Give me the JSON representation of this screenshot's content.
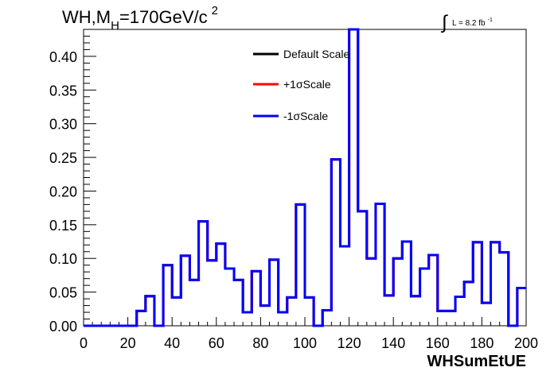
{
  "chart_data": {
    "type": "line",
    "subtype": "step-histogram",
    "title": "WH,M",
    "title_sub": "H",
    "title_tail": "=170GeV/c",
    "title_sup": "2",
    "lumi_label": "L = 8.2 fb",
    "lumi_sup": "-1",
    "xlabel": "WHSumEtUE",
    "ylabel": "",
    "xlim": [
      0,
      200
    ],
    "ylim": [
      0,
      0.44
    ],
    "x_ticks": [
      "0",
      "20",
      "40",
      "60",
      "80",
      "100",
      "120",
      "140",
      "160",
      "180",
      "200"
    ],
    "y_ticks": [
      "0.00",
      "0.05",
      "0.10",
      "0.15",
      "0.20",
      "0.25",
      "0.30",
      "0.35",
      "0.40"
    ],
    "legend_position": "top-center",
    "bin_edges": [
      0,
      4,
      8,
      12,
      16,
      20,
      24,
      28,
      32,
      36,
      40,
      44,
      48,
      52,
      56,
      60,
      64,
      68,
      72,
      76,
      80,
      84,
      88,
      92,
      96,
      100,
      104,
      108,
      112,
      116,
      120,
      124,
      128,
      132,
      136,
      140,
      144,
      148,
      152,
      156,
      160,
      164,
      168,
      172,
      176,
      180,
      184,
      188,
      192,
      196,
      200
    ],
    "series": [
      {
        "name": "Default Scale",
        "color": "#000000",
        "values": [
          0,
          0,
          0,
          0,
          0,
          0,
          0.022,
          0.044,
          0.0,
          0.09,
          0.042,
          0.104,
          0.068,
          0.155,
          0.097,
          0.122,
          0.085,
          0.068,
          0.02,
          0.081,
          0.03,
          0.098,
          0.02,
          0.042,
          0.18,
          0.042,
          0.0,
          0.023,
          0.247,
          0.118,
          0.44,
          0.17,
          0.1,
          0.181,
          0.045,
          0.1,
          0.125,
          0.044,
          0.085,
          0.105,
          0.022,
          0.022,
          0.043,
          0.065,
          0.124,
          0.034,
          0.124,
          0.109,
          0.0,
          0.056
        ]
      },
      {
        "name": "+1σScale",
        "color": "#ff0000",
        "values": [
          0,
          0,
          0,
          0,
          0,
          0,
          0.022,
          0.044,
          0.0,
          0.09,
          0.042,
          0.104,
          0.068,
          0.155,
          0.097,
          0.122,
          0.085,
          0.068,
          0.02,
          0.081,
          0.03,
          0.098,
          0.02,
          0.042,
          0.18,
          0.042,
          0.0,
          0.023,
          0.247,
          0.118,
          0.44,
          0.17,
          0.1,
          0.181,
          0.045,
          0.1,
          0.125,
          0.044,
          0.085,
          0.105,
          0.022,
          0.022,
          0.043,
          0.065,
          0.124,
          0.034,
          0.124,
          0.109,
          0.0,
          0.056
        ]
      },
      {
        "name": "-1σScale",
        "color": "#0000ff",
        "values": [
          0,
          0,
          0,
          0,
          0,
          0,
          0.022,
          0.044,
          0.0,
          0.09,
          0.042,
          0.104,
          0.068,
          0.155,
          0.097,
          0.122,
          0.085,
          0.068,
          0.02,
          0.081,
          0.03,
          0.098,
          0.02,
          0.042,
          0.18,
          0.042,
          0.0,
          0.023,
          0.247,
          0.118,
          0.44,
          0.17,
          0.1,
          0.181,
          0.045,
          0.1,
          0.125,
          0.044,
          0.085,
          0.105,
          0.022,
          0.022,
          0.043,
          0.065,
          0.124,
          0.034,
          0.124,
          0.109,
          0.0,
          0.056
        ]
      }
    ]
  }
}
